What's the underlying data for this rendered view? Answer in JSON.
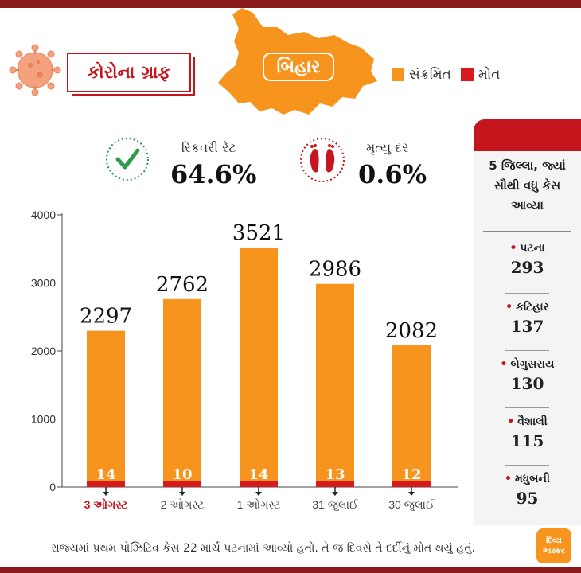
{
  "header": {
    "title": "કોરોના ગ્રાફ",
    "region": "બિહાર"
  },
  "legend": [
    {
      "label": "સંક્રમિત",
      "color": "#f7941d"
    },
    {
      "label": "મોત",
      "color": "#d71920"
    }
  ],
  "stats": {
    "recovery": {
      "label": "રિકવરી રેટ",
      "value": "64.6%",
      "icon": "checkmark-icon"
    },
    "death": {
      "label": "મૃત્યુ દર",
      "value": "0.6%",
      "icon": "footprints-icon"
    }
  },
  "chart_data": {
    "type": "bar",
    "stacked": true,
    "categories": [
      "3 ઓગસ્ટ",
      "2 ઓગસ્ટ",
      "1 ઓગસ્ટ",
      "31 જુલાઈ",
      "30 જુલાઈ"
    ],
    "highlight_category": "3 ઓગસ્ટ",
    "series": [
      {
        "name": "સંક્રમિત",
        "values": [
          2297,
          2762,
          3521,
          2986,
          2082
        ],
        "color": "#f7941d"
      },
      {
        "name": "મોત",
        "values": [
          14,
          10,
          14,
          13,
          12
        ],
        "color": "#d71920"
      }
    ],
    "yticks": [
      0,
      1000,
      2000,
      3000,
      4000
    ],
    "ytick_labels": [
      "0",
      "1000",
      "2000",
      "3000",
      "4000"
    ],
    "ylim": [
      0,
      4000
    ],
    "grid": false
  },
  "side_panel": {
    "title": "5 જિલ્લા, જ્યાં સૌથી વધુ કેસ આવ્યા",
    "cities": [
      {
        "name": "પટના",
        "value": "293"
      },
      {
        "name": "કટિહાર",
        "value": "137"
      },
      {
        "name": "બેગુસરાય",
        "value": "130"
      },
      {
        "name": "વૈશાલી",
        "value": "115"
      },
      {
        "name": "મધુબની",
        "value": "95"
      }
    ]
  },
  "footnote": "રાજ્યમાં પ્રથમ પોઝિટિવ કેસ 22 માર્ચે પટનામાં આવ્યો હતો. તે જ દિવસે તે દર્દીનું મોત થયું હતું.",
  "brand": {
    "line1": "દિવ્ય",
    "line2": "ભાસ્કર"
  },
  "colors": {
    "accent": "#c4161c",
    "infected": "#f7941d",
    "deaths": "#d71920"
  }
}
